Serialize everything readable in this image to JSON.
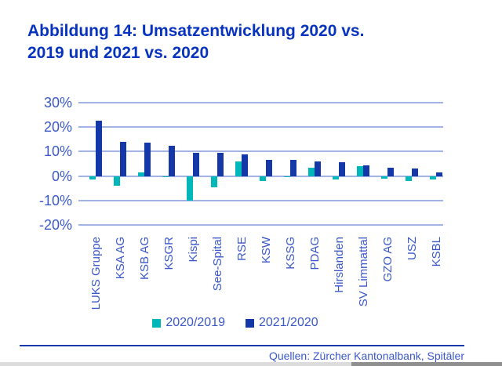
{
  "title": {
    "lines": [
      "Abbildung 14: Umsatzentwicklung 2020 vs.",
      "2019 und 2021 vs. 2020"
    ]
  },
  "chart_data": {
    "type": "bar",
    "title": "Abbildung 14: Umsatzentwicklung 2020 vs. 2019 und 2021 vs. 2020",
    "categories": [
      "LUKS Gruppe",
      "KSA AG",
      "KSB AG",
      "KSGR",
      "Kispi",
      "See-Spital",
      "RSE",
      "KSW",
      "KSSG",
      "PDAG",
      "Hirslanden",
      "SV Limmattal",
      "GZO AG",
      "USZ",
      "KSBL"
    ],
    "series": [
      {
        "name": "2020/2019",
        "color": "#00b8ba",
        "values": [
          -1.5,
          -4,
          1.5,
          -0.3,
          -10,
          -4.5,
          6,
          -2,
          -0.3,
          3.5,
          -1.5,
          4,
          -1,
          -2,
          -1.5
        ]
      },
      {
        "name": "2021/2020",
        "color": "#1438a8",
        "values": [
          22.5,
          14,
          13.5,
          12.5,
          9.5,
          9.5,
          9,
          6.5,
          6.5,
          6,
          5.5,
          4.5,
          3.5,
          3,
          1.5
        ]
      }
    ],
    "unit": "%",
    "ylim": [
      -20,
      30
    ],
    "yticks": [
      {
        "value": 30,
        "label": "30%"
      },
      {
        "value": 20,
        "label": "20%"
      },
      {
        "value": 10,
        "label": "10%"
      },
      {
        "value": 0,
        "label": "0%"
      },
      {
        "value": -10,
        "label": "-10%"
      },
      {
        "value": -20,
        "label": "-20%"
      }
    ],
    "grid": true,
    "legend_position": "bottom",
    "xlabel": "",
    "ylabel": ""
  },
  "footer": {
    "source": "Quellen: Zürcher Kantonalbank, Spitäler"
  },
  "colors": {
    "title_blue": "#0733be",
    "axis_label_blue": "#3a58c9",
    "gridline": "#a3b2e4",
    "series_2020_2019": "#00b8ba",
    "series_2021_2020": "#1438a8",
    "footer_rule_blue": "#1739aa",
    "scrollbar_track": "#dcdcdc",
    "scrollbar_thumb": "#8f8f8f"
  }
}
